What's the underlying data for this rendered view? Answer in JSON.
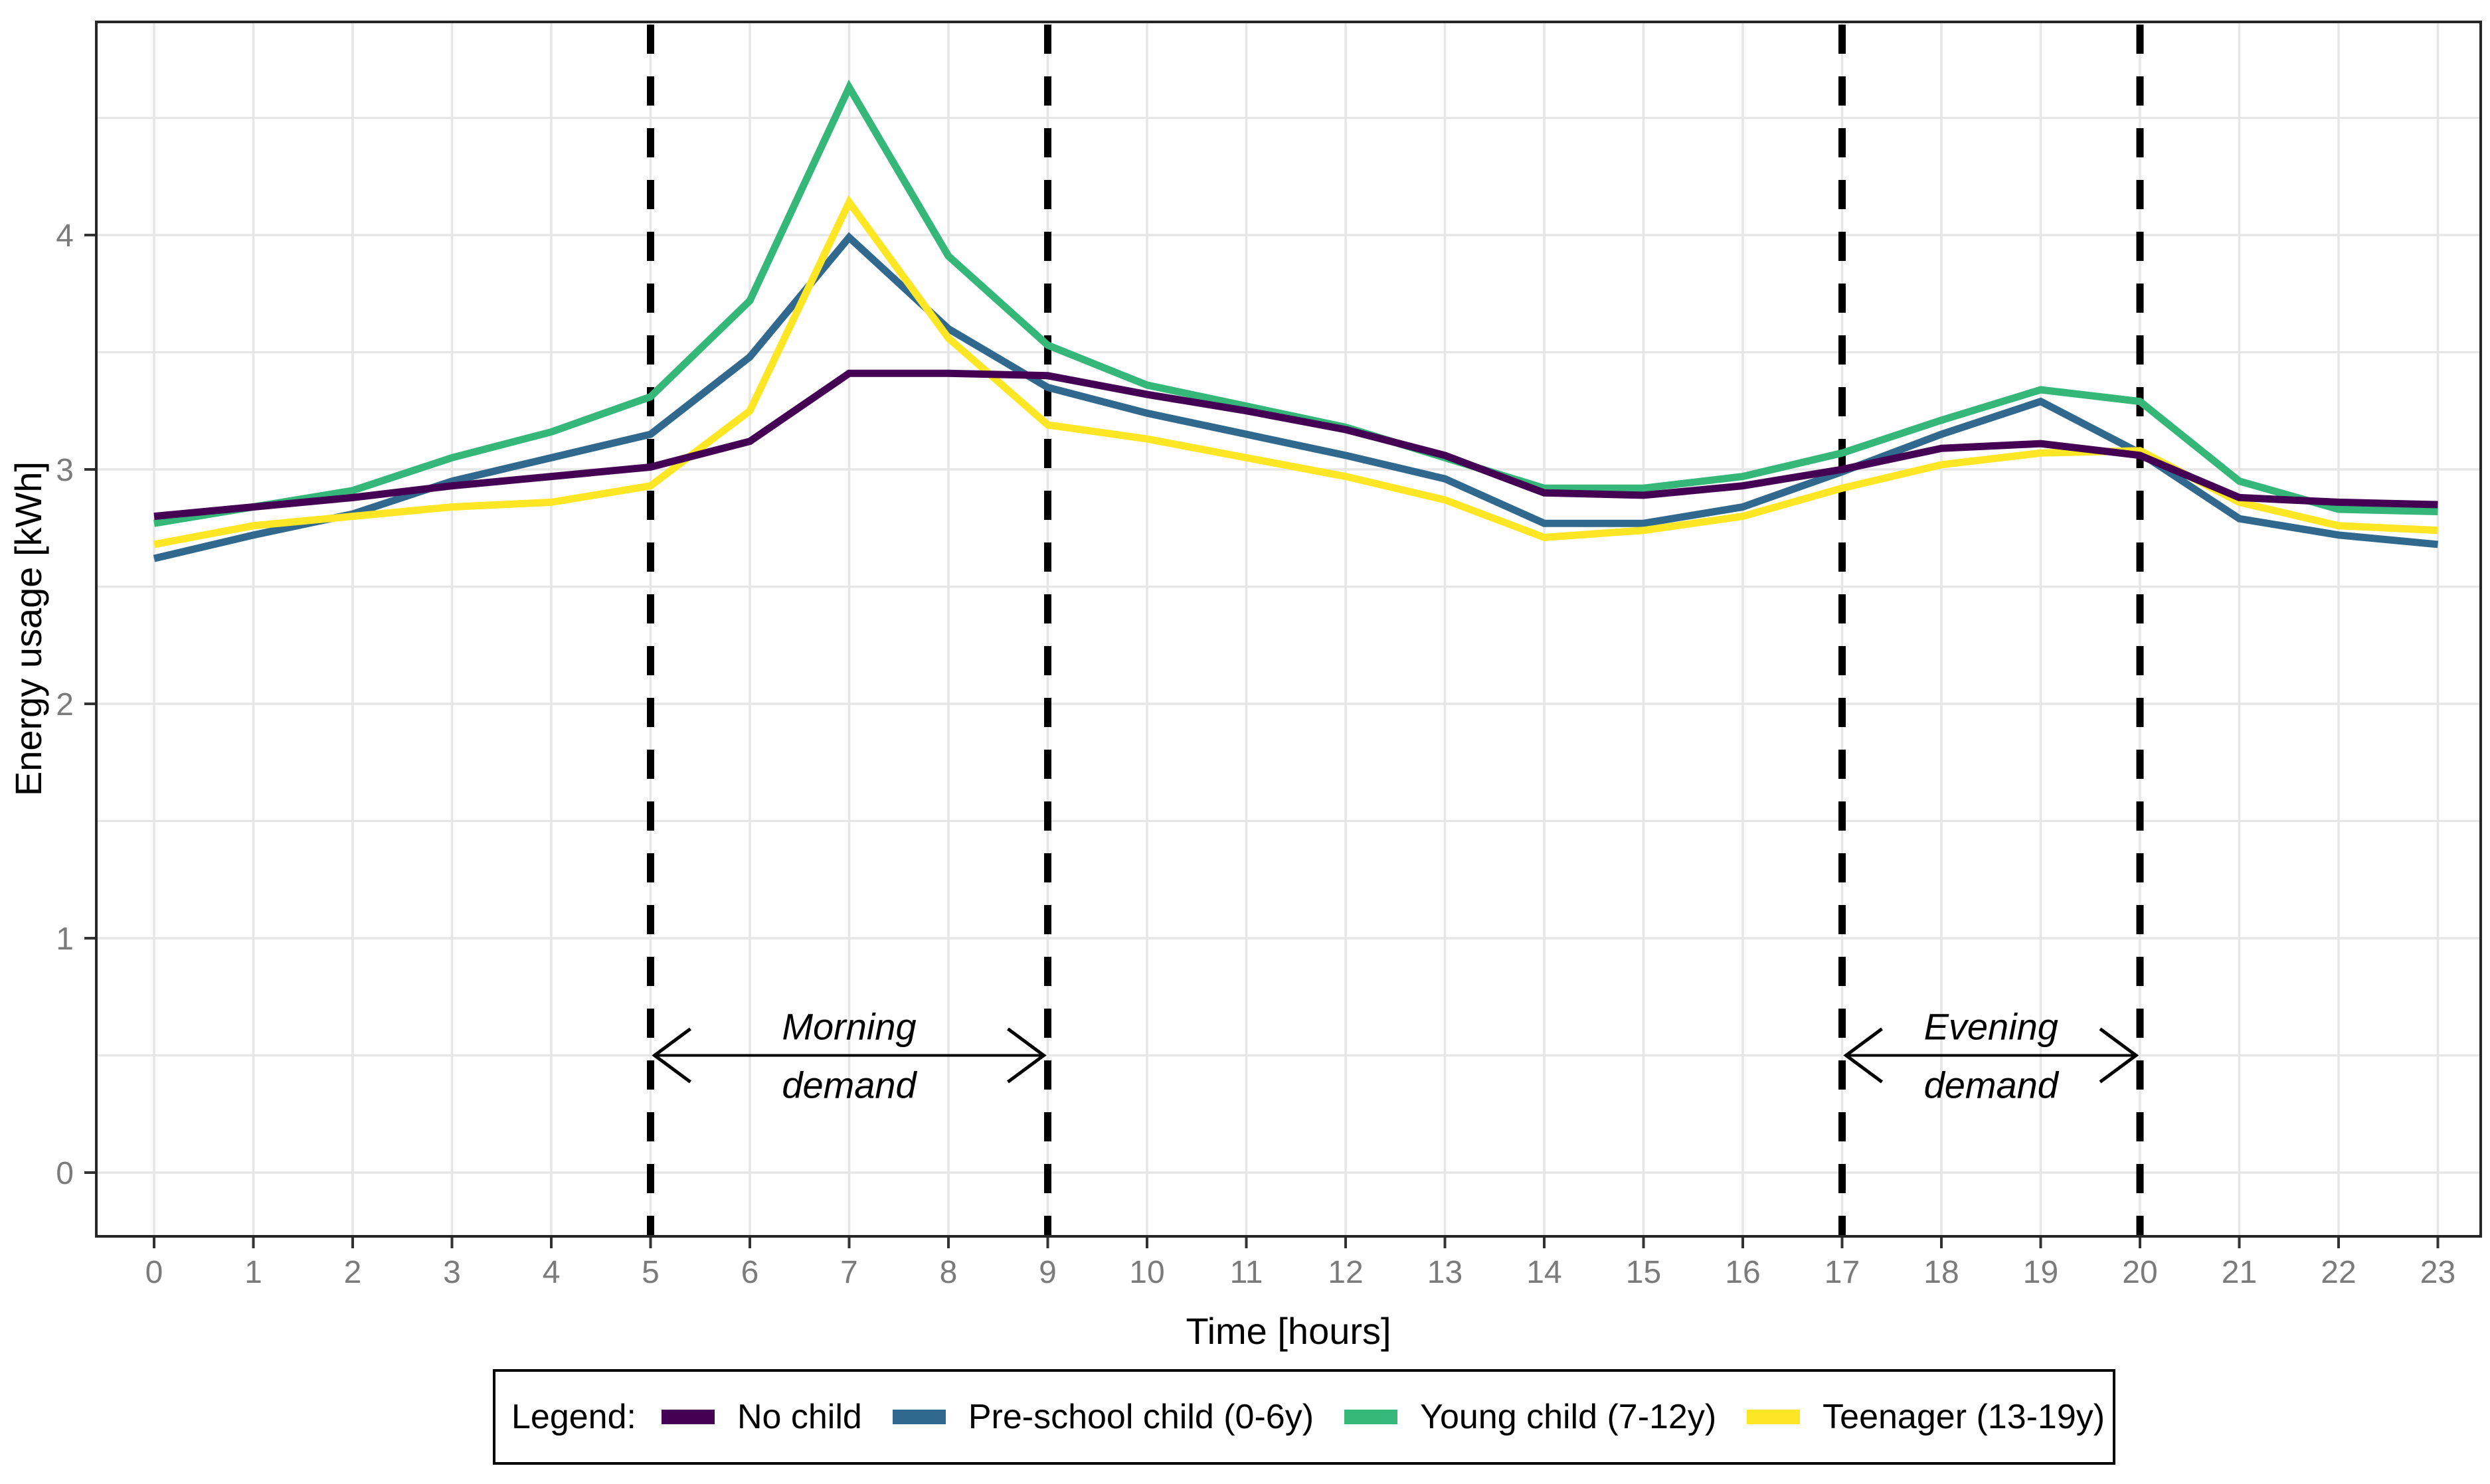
{
  "chart_data": {
    "type": "line",
    "title": "",
    "xlabel": "Time [hours]",
    "ylabel": "Energy usage [kWh]",
    "x": [
      0,
      1,
      2,
      3,
      4,
      5,
      6,
      7,
      8,
      9,
      10,
      11,
      12,
      13,
      14,
      15,
      16,
      17,
      18,
      19,
      20,
      21,
      22,
      23
    ],
    "yticks": [
      0,
      1,
      2,
      3,
      4
    ],
    "ylim": [
      -0.27,
      4.91
    ],
    "xlim": [
      -0.58,
      23.43
    ],
    "grid": {
      "horizontal_step": 0.5,
      "vertical_step": 1,
      "color": "#e6e6e6",
      "shown": true
    },
    "legend_position": "bottom-boxed",
    "series": [
      {
        "name": "No child",
        "color": "#440154",
        "values": [
          2.8,
          2.84,
          2.88,
          2.93,
          2.97,
          3.01,
          3.12,
          3.41,
          3.41,
          3.4,
          3.32,
          3.25,
          3.17,
          3.06,
          2.9,
          2.89,
          2.93,
          3.0,
          3.09,
          3.11,
          3.06,
          2.88,
          2.86,
          2.85
        ]
      },
      {
        "name": "Pre-school child (0-6y)",
        "color": "#31688E",
        "values": [
          2.62,
          2.72,
          2.81,
          2.95,
          3.05,
          3.15,
          3.48,
          3.99,
          3.6,
          3.35,
          3.24,
          3.15,
          3.06,
          2.96,
          2.77,
          2.77,
          2.84,
          2.99,
          3.15,
          3.29,
          3.07,
          2.79,
          2.72,
          2.68
        ]
      },
      {
        "name": "Young child (7-12y)",
        "color": "#35B779",
        "values": [
          2.77,
          2.84,
          2.91,
          3.05,
          3.16,
          3.31,
          3.72,
          4.63,
          3.91,
          3.53,
          3.36,
          3.27,
          3.18,
          3.05,
          2.92,
          2.92,
          2.97,
          3.07,
          3.21,
          3.34,
          3.29,
          2.95,
          2.83,
          2.82
        ]
      },
      {
        "name": "Teenager (13-19y)",
        "color": "#FDE725",
        "values": [
          2.68,
          2.76,
          2.8,
          2.84,
          2.86,
          2.93,
          3.25,
          4.14,
          3.56,
          3.19,
          3.13,
          3.05,
          2.97,
          2.87,
          2.71,
          2.74,
          2.8,
          2.92,
          3.02,
          3.07,
          3.08,
          2.86,
          2.76,
          2.74
        ]
      }
    ],
    "vlines": {
      "hours": [
        5,
        9,
        17,
        20
      ],
      "style": "dashed",
      "color": "#000000"
    },
    "annotations": [
      {
        "line1": "Morning",
        "line2": "demand",
        "x_from": 5,
        "x_to": 9,
        "arrow_y": 0.5
      },
      {
        "line1": "Evening",
        "line2": "demand",
        "x_from": 17,
        "x_to": 20,
        "arrow_y": 0.5
      }
    ]
  },
  "legend": {
    "title": "Legend:",
    "items": [
      {
        "label": "No child",
        "color": "#440154"
      },
      {
        "label": "Pre-school child (0-6y)",
        "color": "#31688E"
      },
      {
        "label": "Young child (7-12y)",
        "color": "#35B779"
      },
      {
        "label": "Teenager (13-19y)",
        "color": "#FDE725"
      }
    ]
  }
}
